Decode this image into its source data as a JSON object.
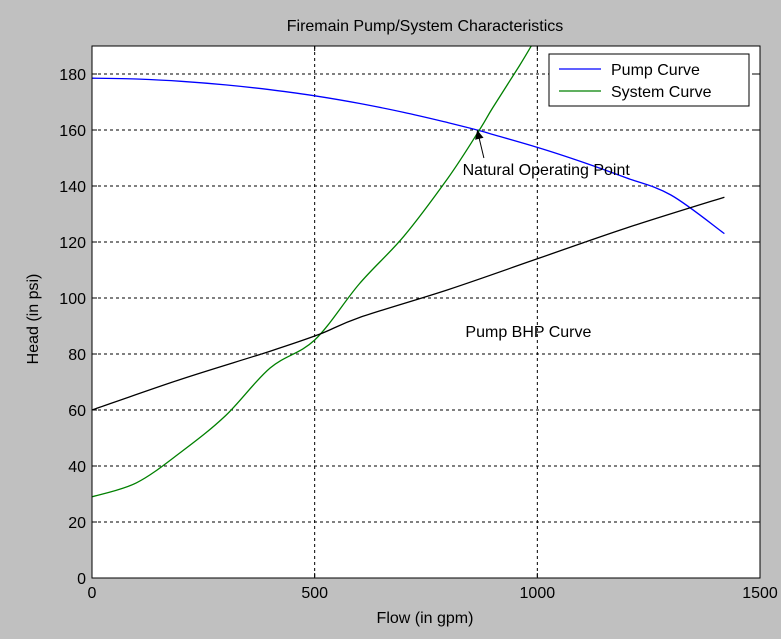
{
  "figure": {
    "background": "#c0c0c0",
    "axes_background": "#ffffff"
  },
  "chart_data": {
    "type": "line",
    "title": "Firemain Pump/System Characteristics",
    "xlabel": "Flow (in gpm)",
    "ylabel": "Head (in psi)",
    "xlim": [
      0,
      1500
    ],
    "ylim": [
      0,
      190
    ],
    "xticks": [
      0,
      500,
      1000,
      1500
    ],
    "yticks": [
      0,
      20,
      40,
      60,
      80,
      100,
      120,
      140,
      160,
      180
    ],
    "grid": true,
    "grid_style": "dotted",
    "legend_position": "top-right",
    "series": [
      {
        "name": "Pump Curve",
        "color": "#0000ff",
        "in_legend": true,
        "x": [
          0,
          100,
          200,
          300,
          400,
          500,
          600,
          700,
          800,
          870,
          900,
          1000,
          1100,
          1200,
          1300,
          1420
        ],
        "y": [
          178.5,
          178.2,
          177.4,
          176.1,
          174.4,
          172.2,
          169.5,
          166.3,
          162.6,
          159.8,
          158.4,
          153.8,
          148.6,
          142.9,
          136.8,
          123
        ]
      },
      {
        "name": "System Curve",
        "color": "#008000",
        "in_legend": true,
        "x": [
          0,
          100,
          200,
          300,
          400,
          500,
          600,
          700,
          800,
          870,
          900,
          960,
          990
        ],
        "y": [
          29,
          34,
          45,
          58,
          75,
          85,
          105,
          122,
          143,
          160,
          168,
          183,
          191
        ]
      },
      {
        "name": "Pump BHP Curve",
        "color": "#000000",
        "in_legend": false,
        "x": [
          0,
          200,
          400,
          510,
          600,
          800,
          1000,
          1200,
          1420
        ],
        "y": [
          60,
          71,
          81,
          87,
          93,
          103,
          114,
          125,
          136
        ]
      }
    ],
    "annotations": [
      {
        "text": "Natural Operating Point",
        "at": [
          1020,
          144
        ],
        "arrow_to": [
          865,
          160
        ],
        "arrow_from": [
          880,
          150
        ]
      },
      {
        "text": "Pump BHP Curve",
        "at": [
          980,
          86
        ]
      }
    ]
  }
}
